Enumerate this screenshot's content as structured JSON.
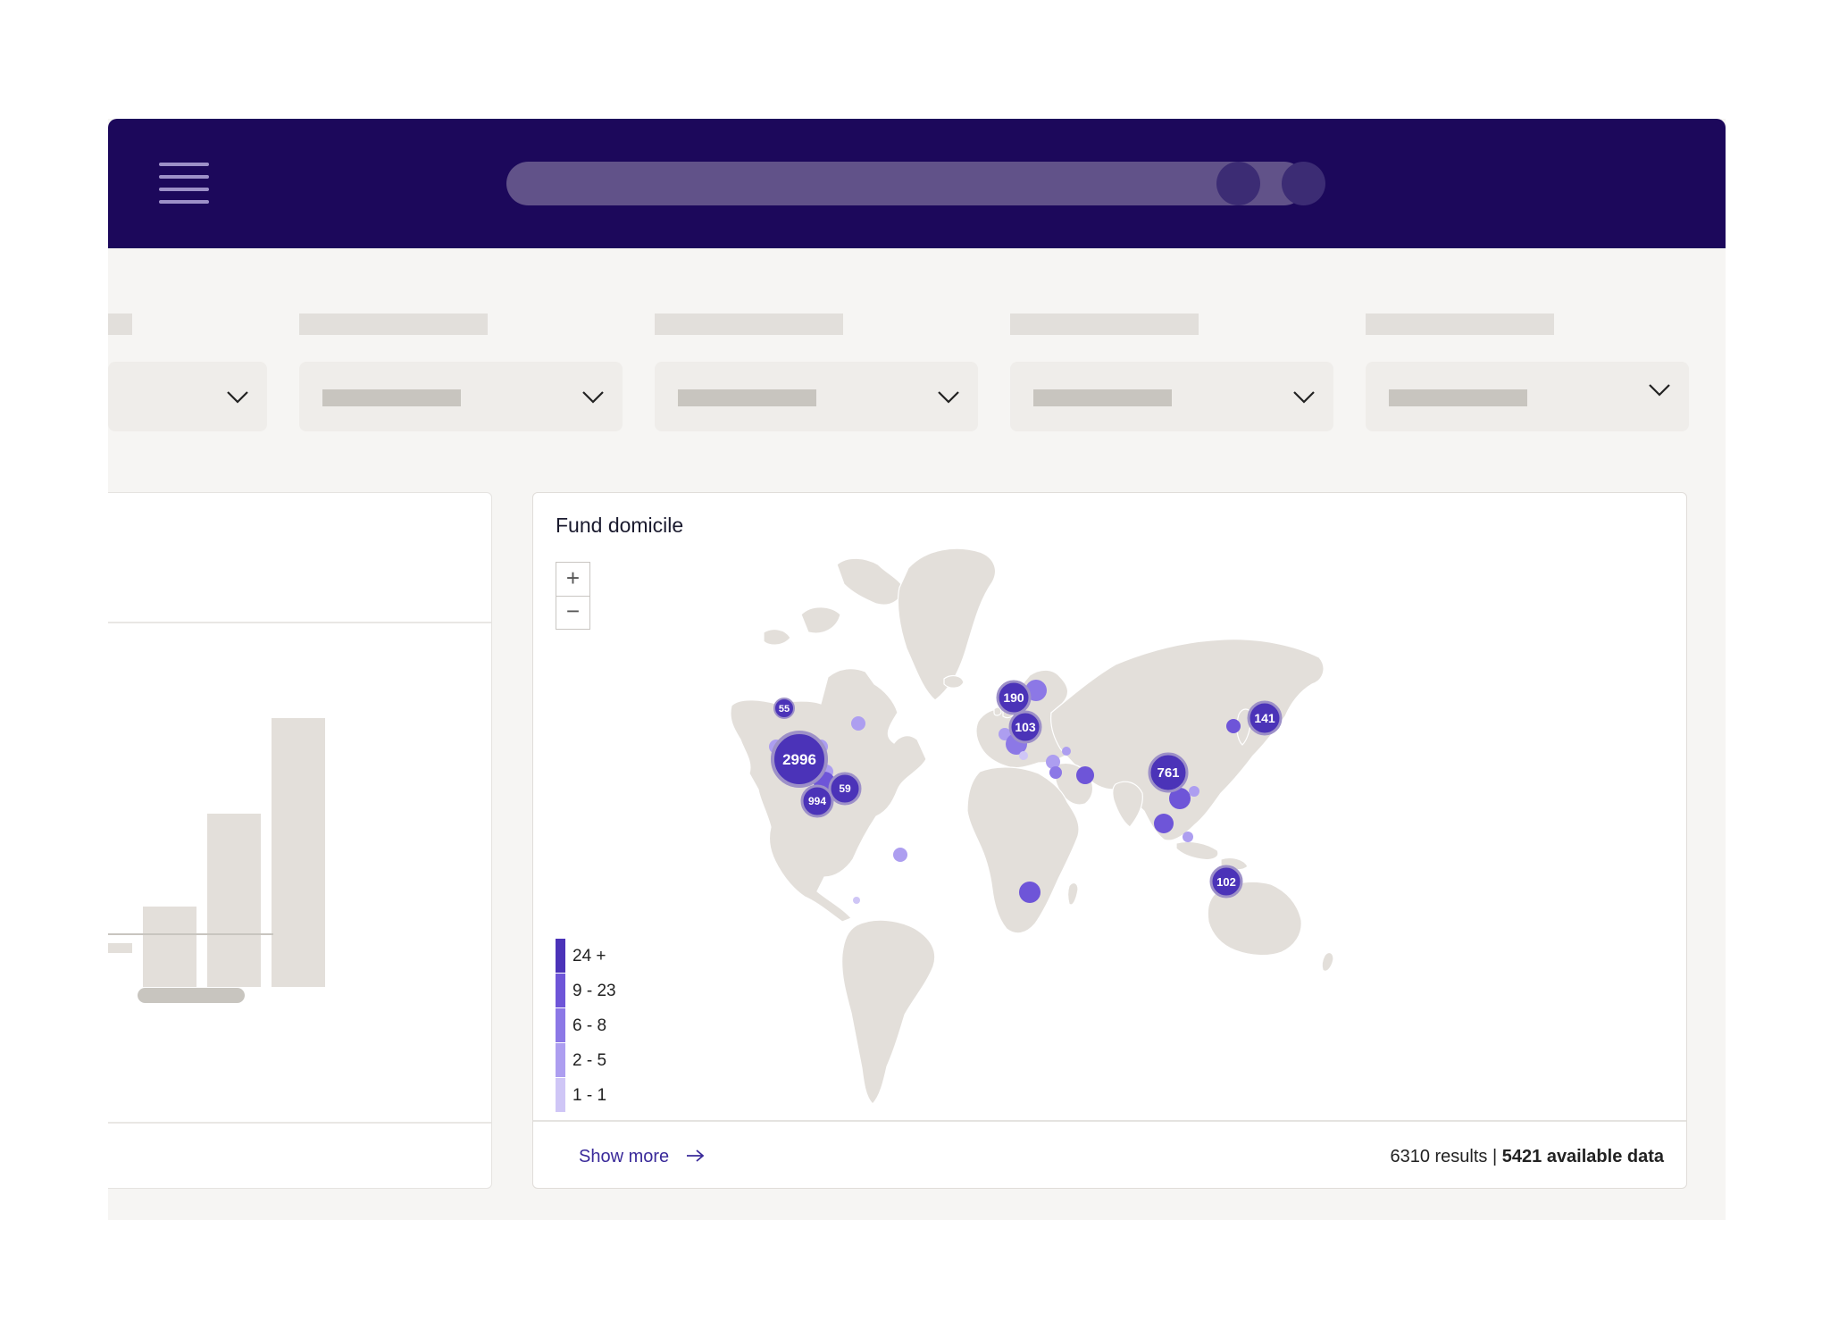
{
  "map": {
    "title": "Fund domicile",
    "zoom_in": "+",
    "zoom_out": "−",
    "clusters": [
      "2996",
      "994",
      "59",
      "55",
      "190",
      "103",
      "141",
      "761",
      "102"
    ],
    "legend": [
      {
        "label": "24 +",
        "color": "#4b33b8"
      },
      {
        "label": "9 - 23",
        "color": "#6e55d8"
      },
      {
        "label": "6 - 8",
        "color": "#8c78e6"
      },
      {
        "label": "2 - 5",
        "color": "#ad9ef0"
      },
      {
        "label": "1 - 1",
        "color": "#cfc6f6"
      }
    ],
    "show_more": "Show more",
    "results_count": "6310 results",
    "separator": "|",
    "available_data": "5421 available data"
  },
  "colors": {
    "topbar": "#1c085b",
    "accent": "#4b33b8",
    "land": "#e3dfda"
  }
}
